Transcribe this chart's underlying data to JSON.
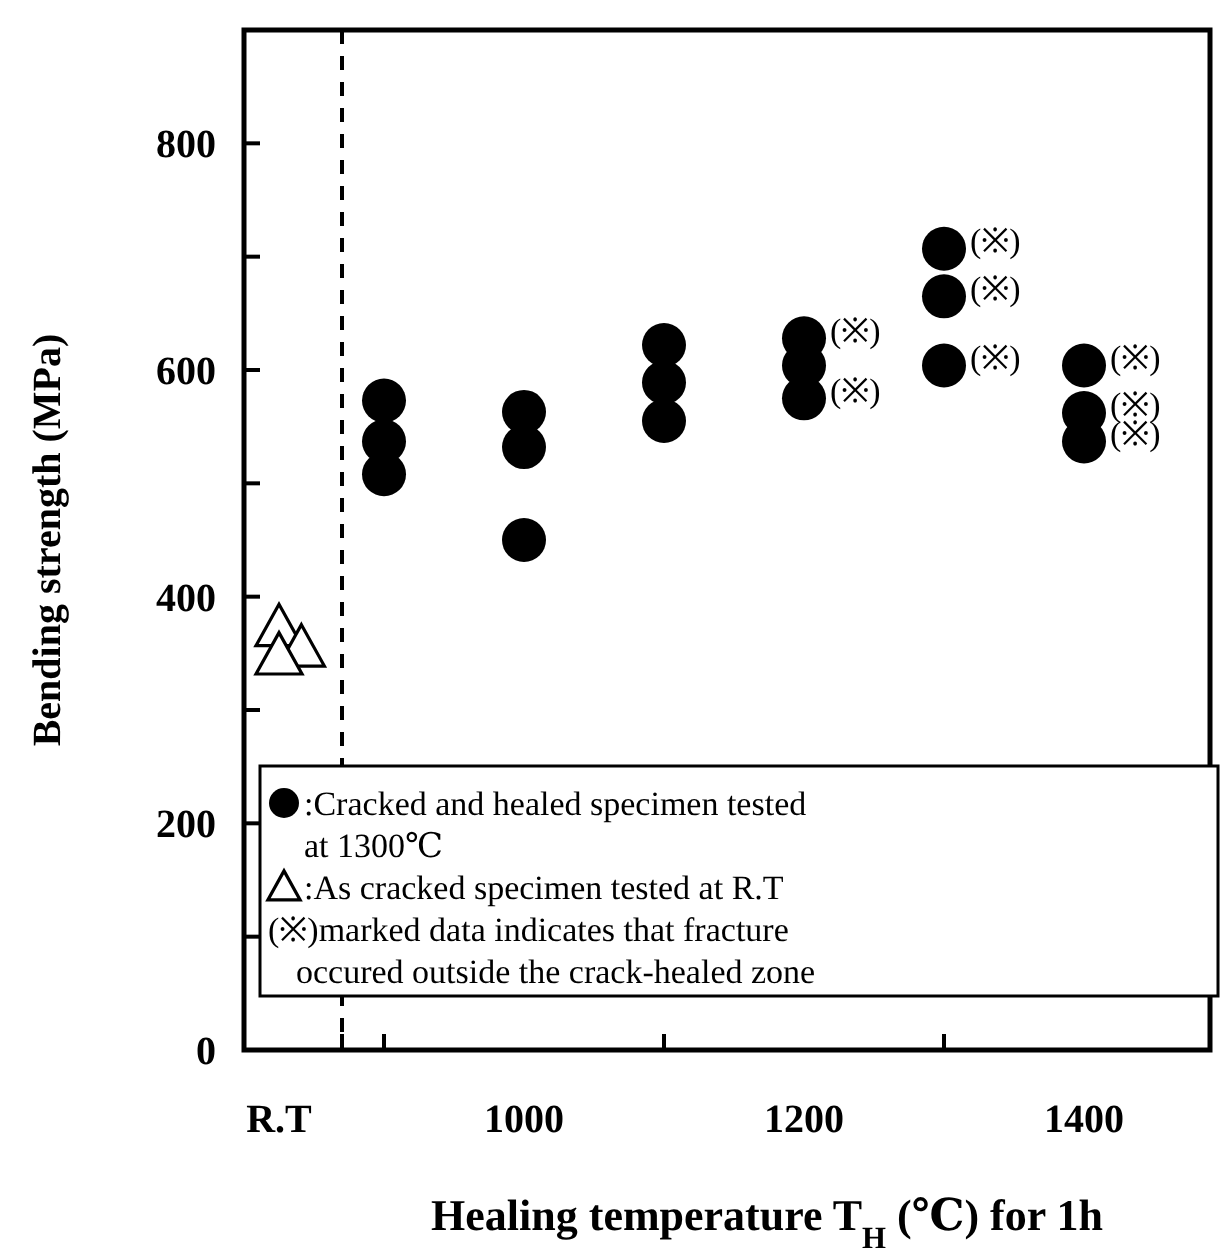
{
  "chart_data": {
    "type": "scatter",
    "xlabel": "Healing temperature T$_{H}$ (℃) for 1h",
    "ylabel": "Bending strength (MPa)",
    "xlim": [
      800,
      1490
    ],
    "xticks": [
      {
        "value": 825,
        "label": "R.T"
      },
      {
        "value": 870,
        "label": null
      },
      {
        "value": 900,
        "label": null
      },
      1000,
      {
        "value": 1100,
        "label": null
      },
      1200,
      {
        "value": 1300,
        "label": null
      },
      1400
    ],
    "ylim": [
      0,
      900
    ],
    "yticks": [
      0,
      {
        "value": 100,
        "label": null
      },
      200,
      {
        "value": 300,
        "label": null
      },
      400,
      {
        "value": 500,
        "label": null
      },
      600,
      {
        "value": 700,
        "label": null
      },
      800
    ],
    "grid": false,
    "legend": "bottom",
    "series": [
      {
        "name": ":Cracked and healed specimen tested at 1300℃",
        "color": "#000000",
        "marker": "circle",
        "x": [
          900,
          900,
          900,
          1000,
          1000,
          1000,
          1100,
          1100,
          1100,
          1200,
          1200,
          1200,
          1300,
          1300,
          1300,
          1400,
          1400,
          1400
        ],
        "values": [
          573,
          537,
          508,
          563,
          532,
          450,
          622,
          589,
          555,
          628,
          604,
          575,
          707,
          665,
          604,
          604,
          562,
          537
        ]
      },
      {
        "name": ":As cracked  specimen tested at R.T",
        "color": "#000000",
        "marker": "triangle",
        "x": [
          825,
          841,
          825
        ],
        "values": [
          373,
          355,
          348
        ]
      }
    ],
    "ref_lines": [
      {
        "axis": "x",
        "value": 870,
        "line_style": "dashed",
        "color": "#000000"
      }
    ],
    "annotations": [
      "(※)marked data indicates that fracture occured outside the crack-healed zone",
      {
        "text": "(※)",
        "x": 1200,
        "y": 628
      },
      {
        "text": "(※)",
        "x": 1200,
        "y": 575
      },
      {
        "text": "(※)",
        "x": 1300,
        "y": 707
      },
      {
        "text": "(※)",
        "x": 1300,
        "y": 665
      },
      {
        "text": "(※)",
        "x": 1300,
        "y": 604
      },
      {
        "text": "(※)",
        "x": 1400,
        "y": 604
      },
      {
        "text": "(※)",
        "x": 1400,
        "y": 562
      },
      {
        "text": "(※)",
        "x": 1400,
        "y": 537
      }
    ]
  }
}
